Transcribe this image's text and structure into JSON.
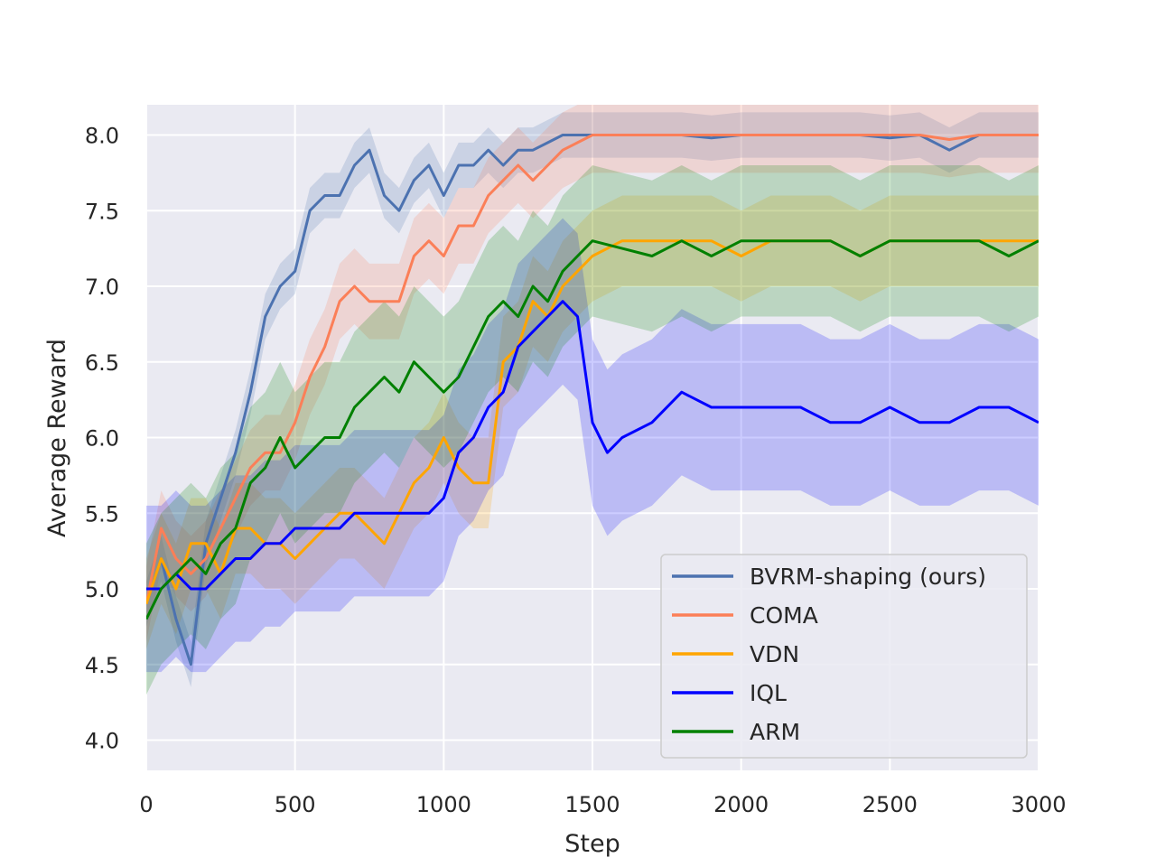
{
  "chart_data": {
    "type": "line",
    "xlabel": "Step",
    "ylabel": "Average Reward",
    "xlim": [
      0,
      3000
    ],
    "ylim": [
      3.8,
      8.2
    ],
    "xticks": [
      0,
      500,
      1000,
      1500,
      2000,
      2500,
      3000
    ],
    "yticks": [
      4.0,
      4.5,
      5.0,
      5.5,
      6.0,
      6.5,
      7.0,
      7.5,
      8.0
    ],
    "xtick_labels": [
      "0",
      "500",
      "1000",
      "1500",
      "2000",
      "2500",
      "3000"
    ],
    "ytick_labels": [
      "4.0",
      "4.5",
      "5.0",
      "5.5",
      "6.0",
      "6.5",
      "7.0",
      "7.5",
      "8.0"
    ],
    "grid": true,
    "legend_position": "lower-right",
    "colors": {
      "background": "#eaeaf2",
      "grid": "#ffffff"
    },
    "series": [
      {
        "name": "BVRM-shaping (ours)",
        "color": "#4c72b0",
        "x": [
          0,
          50,
          100,
          150,
          200,
          250,
          300,
          350,
          400,
          450,
          500,
          550,
          600,
          650,
          700,
          750,
          800,
          850,
          900,
          950,
          1000,
          1050,
          1100,
          1150,
          1200,
          1250,
          1300,
          1350,
          1400,
          1450,
          1500,
          1600,
          1700,
          1800,
          1900,
          2000,
          2100,
          2200,
          2300,
          2400,
          2500,
          2600,
          2700,
          2800,
          2900,
          3000
        ],
        "y": [
          4.9,
          5.2,
          4.8,
          4.5,
          5.3,
          5.6,
          5.9,
          6.3,
          6.8,
          7.0,
          7.1,
          7.5,
          7.6,
          7.6,
          7.8,
          7.9,
          7.6,
          7.5,
          7.7,
          7.8,
          7.6,
          7.8,
          7.8,
          7.9,
          7.8,
          7.9,
          7.9,
          7.95,
          8.0,
          8.0,
          8.0,
          8.0,
          8.0,
          8.0,
          7.98,
          8.0,
          8.0,
          8.0,
          8.0,
          8.0,
          7.98,
          8.0,
          7.9,
          8.0,
          8.0,
          8.0
        ],
        "band": 0.15
      },
      {
        "name": "COMA",
        "color": "#fb7f58",
        "x": [
          0,
          50,
          100,
          150,
          200,
          250,
          300,
          350,
          400,
          450,
          500,
          550,
          600,
          650,
          700,
          750,
          800,
          850,
          900,
          950,
          1000,
          1050,
          1100,
          1150,
          1200,
          1250,
          1300,
          1350,
          1400,
          1450,
          1500,
          1600,
          1700,
          1800,
          1900,
          2000,
          2100,
          2200,
          2300,
          2400,
          2500,
          2600,
          2700,
          2800,
          2900,
          3000
        ],
        "y": [
          4.9,
          5.4,
          5.2,
          5.1,
          5.2,
          5.4,
          5.6,
          5.8,
          5.9,
          5.9,
          6.1,
          6.4,
          6.6,
          6.9,
          7.0,
          6.9,
          6.9,
          6.9,
          7.2,
          7.3,
          7.2,
          7.4,
          7.4,
          7.6,
          7.7,
          7.8,
          7.7,
          7.8,
          7.9,
          7.95,
          8.0,
          8.0,
          8.0,
          8.0,
          8.0,
          8.0,
          8.0,
          8.0,
          8.0,
          8.0,
          8.0,
          8.0,
          7.97,
          8.0,
          8.0,
          8.0
        ],
        "band": 0.25
      },
      {
        "name": "VDN",
        "color": "#ffa500",
        "x": [
          0,
          50,
          100,
          150,
          200,
          250,
          300,
          350,
          400,
          450,
          500,
          550,
          600,
          650,
          700,
          750,
          800,
          850,
          900,
          950,
          1000,
          1050,
          1100,
          1150,
          1200,
          1250,
          1300,
          1350,
          1400,
          1450,
          1500,
          1600,
          1700,
          1800,
          1900,
          2000,
          2100,
          2200,
          2300,
          2400,
          2500,
          2600,
          2700,
          2800,
          2900,
          3000
        ],
        "y": [
          4.9,
          5.2,
          5.0,
          5.3,
          5.3,
          5.1,
          5.4,
          5.4,
          5.3,
          5.3,
          5.2,
          5.3,
          5.4,
          5.5,
          5.5,
          5.4,
          5.3,
          5.5,
          5.7,
          5.8,
          6.0,
          5.8,
          5.7,
          5.7,
          6.5,
          6.6,
          6.9,
          6.8,
          7.0,
          7.1,
          7.2,
          7.3,
          7.3,
          7.3,
          7.3,
          7.2,
          7.3,
          7.3,
          7.3,
          7.2,
          7.3,
          7.3,
          7.3,
          7.3,
          7.3,
          7.3
        ],
        "band": 0.3
      },
      {
        "name": "IQL",
        "color": "#0000ff",
        "x": [
          0,
          50,
          100,
          150,
          200,
          250,
          300,
          350,
          400,
          450,
          500,
          550,
          600,
          650,
          700,
          750,
          800,
          850,
          900,
          950,
          1000,
          1050,
          1100,
          1150,
          1200,
          1250,
          1300,
          1350,
          1400,
          1450,
          1500,
          1550,
          1600,
          1700,
          1800,
          1900,
          2000,
          2100,
          2200,
          2300,
          2400,
          2500,
          2600,
          2700,
          2800,
          2900,
          3000
        ],
        "y": [
          5.0,
          5.0,
          5.1,
          5.0,
          5.0,
          5.1,
          5.2,
          5.2,
          5.3,
          5.3,
          5.4,
          5.4,
          5.4,
          5.4,
          5.5,
          5.5,
          5.5,
          5.5,
          5.5,
          5.5,
          5.6,
          5.9,
          6.0,
          6.2,
          6.3,
          6.6,
          6.7,
          6.8,
          6.9,
          6.8,
          6.1,
          5.9,
          6.0,
          6.1,
          6.3,
          6.2,
          6.2,
          6.2,
          6.2,
          6.1,
          6.1,
          6.2,
          6.1,
          6.1,
          6.2,
          6.2,
          6.1
        ],
        "band": 0.55
      },
      {
        "name": "ARM",
        "color": "#008000",
        "x": [
          0,
          50,
          100,
          150,
          200,
          250,
          300,
          350,
          400,
          450,
          500,
          550,
          600,
          650,
          700,
          750,
          800,
          850,
          900,
          950,
          1000,
          1050,
          1100,
          1150,
          1200,
          1250,
          1300,
          1350,
          1400,
          1450,
          1500,
          1600,
          1700,
          1800,
          1900,
          2000,
          2100,
          2200,
          2300,
          2400,
          2500,
          2600,
          2700,
          2800,
          2900,
          3000
        ],
        "y": [
          4.8,
          5.0,
          5.1,
          5.2,
          5.1,
          5.3,
          5.4,
          5.7,
          5.8,
          6.0,
          5.8,
          5.9,
          6.0,
          6.0,
          6.2,
          6.3,
          6.4,
          6.3,
          6.5,
          6.4,
          6.3,
          6.4,
          6.6,
          6.8,
          6.9,
          6.8,
          7.0,
          6.9,
          7.1,
          7.2,
          7.3,
          7.25,
          7.2,
          7.3,
          7.2,
          7.3,
          7.3,
          7.3,
          7.3,
          7.2,
          7.3,
          7.3,
          7.3,
          7.3,
          7.2,
          7.3
        ],
        "band": 0.5
      }
    ]
  }
}
